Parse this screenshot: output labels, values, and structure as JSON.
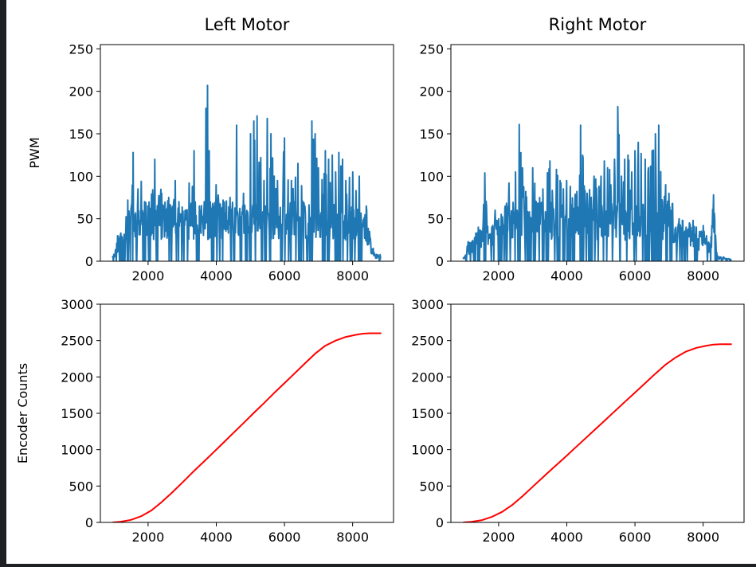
{
  "chart_data": [
    {
      "id": "pwm-left",
      "type": "line",
      "title": "Left Motor",
      "ylabel": "PWM",
      "xlabel": "",
      "xlim": [
        600,
        9200
      ],
      "ylim": [
        0,
        255
      ],
      "xticks": [
        2000,
        4000,
        6000,
        8000
      ],
      "yticks": [
        0,
        50,
        100,
        150,
        200,
        250
      ],
      "color": "#1f77b4",
      "grid": false,
      "noise_seed": 11,
      "peaks": [
        [
          1000,
          8
        ],
        [
          1100,
          30
        ],
        [
          1200,
          33
        ],
        [
          1400,
          72
        ],
        [
          1500,
          62
        ],
        [
          1560,
          128
        ],
        [
          1700,
          85
        ],
        [
          1800,
          94
        ],
        [
          1900,
          70
        ],
        [
          2100,
          79
        ],
        [
          2200,
          120
        ],
        [
          2400,
          80
        ],
        [
          2600,
          75
        ],
        [
          2800,
          95
        ],
        [
          2900,
          70
        ],
        [
          3100,
          60
        ],
        [
          3200,
          92
        ],
        [
          3300,
          88
        ],
        [
          3350,
          130
        ],
        [
          3500,
          65
        ],
        [
          3650,
          70
        ],
        [
          3700,
          180
        ],
        [
          3740,
          207
        ],
        [
          3900,
          68
        ],
        [
          4000,
          90
        ],
        [
          4200,
          72
        ],
        [
          4400,
          75
        ],
        [
          4600,
          160
        ],
        [
          4800,
          80
        ],
        [
          5000,
          150
        ],
        [
          5100,
          165
        ],
        [
          5200,
          171
        ],
        [
          5300,
          122
        ],
        [
          5400,
          95
        ],
        [
          5500,
          168
        ],
        [
          5600,
          150
        ],
        [
          5700,
          100
        ],
        [
          5800,
          95
        ],
        [
          6000,
          145
        ],
        [
          6200,
          95
        ],
        [
          6400,
          115
        ],
        [
          6600,
          65
        ],
        [
          6800,
          165
        ],
        [
          6900,
          150
        ],
        [
          7000,
          110
        ],
        [
          7100,
          96
        ],
        [
          7200,
          130
        ],
        [
          7300,
          120
        ],
        [
          7400,
          125
        ],
        [
          7500,
          105
        ],
        [
          7600,
          128
        ],
        [
          7700,
          120
        ],
        [
          7800,
          95
        ],
        [
          8000,
          105
        ],
        [
          8200,
          100
        ],
        [
          8400,
          65
        ],
        [
          8500,
          35
        ],
        [
          8600,
          15
        ],
        [
          8700,
          8
        ]
      ],
      "series": [
        {
          "x_range": [
            960,
            8840
          ],
          "y_max": 207
        }
      ]
    },
    {
      "id": "pwm-right",
      "type": "line",
      "title": "Right Motor",
      "ylabel": "",
      "xlabel": "",
      "xlim": [
        600,
        9200
      ],
      "ylim": [
        0,
        255
      ],
      "xticks": [
        2000,
        4000,
        6000,
        8000
      ],
      "yticks": [
        0,
        50,
        100,
        150,
        200,
        250
      ],
      "color": "#1f77b4",
      "grid": false,
      "noise_seed": 29,
      "peaks": [
        [
          1000,
          5
        ],
        [
          1100,
          23
        ],
        [
          1200,
          22
        ],
        [
          1400,
          40
        ],
        [
          1500,
          35
        ],
        [
          1600,
          104
        ],
        [
          1700,
          30
        ],
        [
          1800,
          40
        ],
        [
          1900,
          60
        ],
        [
          2000,
          50
        ],
        [
          2200,
          65
        ],
        [
          2300,
          92
        ],
        [
          2500,
          105
        ],
        [
          2600,
          161
        ],
        [
          2700,
          110
        ],
        [
          2800,
          82
        ],
        [
          2900,
          58
        ],
        [
          3000,
          110
        ],
        [
          3200,
          75
        ],
        [
          3300,
          85
        ],
        [
          3500,
          118
        ],
        [
          3700,
          108
        ],
        [
          3800,
          95
        ],
        [
          3900,
          85
        ],
        [
          4000,
          95
        ],
        [
          4100,
          88
        ],
        [
          4300,
          82
        ],
        [
          4400,
          160
        ],
        [
          4600,
          80
        ],
        [
          4800,
          100
        ],
        [
          5000,
          100
        ],
        [
          5100,
          118
        ],
        [
          5200,
          110
        ],
        [
          5400,
          120
        ],
        [
          5500,
          182
        ],
        [
          5600,
          100
        ],
        [
          5700,
          120
        ],
        [
          5800,
          125
        ],
        [
          5900,
          105
        ],
        [
          6000,
          130
        ],
        [
          6100,
          140
        ],
        [
          6300,
          120
        ],
        [
          6400,
          110
        ],
        [
          6500,
          130
        ],
        [
          6600,
          150
        ],
        [
          6700,
          160
        ],
        [
          6800,
          70
        ],
        [
          6900,
          90
        ],
        [
          7000,
          80
        ],
        [
          7100,
          68
        ],
        [
          7200,
          40
        ],
        [
          7300,
          50
        ],
        [
          7400,
          48
        ],
        [
          7500,
          40
        ],
        [
          7600,
          45
        ],
        [
          7700,
          48
        ],
        [
          7800,
          40
        ],
        [
          7900,
          35
        ],
        [
          8000,
          42
        ],
        [
          8100,
          30
        ],
        [
          8200,
          20
        ],
        [
          8300,
          78
        ],
        [
          8400,
          10
        ],
        [
          8500,
          5
        ],
        [
          8600,
          5
        ],
        [
          8700,
          3
        ]
      ],
      "series": [
        {
          "x_range": [
            960,
            8840
          ],
          "y_max": 182
        }
      ]
    },
    {
      "id": "encoder-left",
      "type": "line",
      "title": "",
      "ylabel": "Encoder Counts",
      "xlabel": "",
      "xlim": [
        600,
        9200
      ],
      "ylim": [
        0,
        3000
      ],
      "xticks": [
        2000,
        4000,
        6000,
        8000
      ],
      "yticks": [
        0,
        500,
        1000,
        1500,
        2000,
        2500,
        3000
      ],
      "color": "#ff0000",
      "grid": false,
      "series": [
        {
          "x": [
            960,
            1200,
            1500,
            1800,
            2100,
            2400,
            2700,
            3000,
            3300,
            3600,
            3900,
            4200,
            4500,
            4800,
            5100,
            5400,
            5700,
            6000,
            6300,
            6600,
            6900,
            7200,
            7500,
            7800,
            8100,
            8300,
            8500,
            8700,
            8840
          ],
          "y": [
            0,
            10,
            35,
            85,
            165,
            280,
            410,
            545,
            685,
            820,
            955,
            1090,
            1230,
            1365,
            1505,
            1640,
            1780,
            1915,
            2050,
            2185,
            2320,
            2430,
            2500,
            2550,
            2580,
            2595,
            2600,
            2600,
            2600
          ]
        }
      ]
    },
    {
      "id": "encoder-right",
      "type": "line",
      "title": "",
      "ylabel": "",
      "xlabel": "",
      "xlim": [
        600,
        9200
      ],
      "ylim": [
        0,
        3000
      ],
      "xticks": [
        2000,
        4000,
        6000,
        8000
      ],
      "yticks": [
        0,
        500,
        1000,
        1500,
        2000,
        2500,
        3000
      ],
      "color": "#ff0000",
      "grid": false,
      "series": [
        {
          "x": [
            960,
            1200,
            1500,
            1800,
            2100,
            2400,
            2700,
            3000,
            3300,
            3600,
            3900,
            4200,
            4500,
            4800,
            5100,
            5400,
            5700,
            6000,
            6300,
            6600,
            6900,
            7200,
            7500,
            7800,
            8100,
            8300,
            8500,
            8700,
            8840
          ],
          "y": [
            0,
            8,
            30,
            75,
            145,
            240,
            360,
            490,
            620,
            750,
            875,
            1005,
            1135,
            1265,
            1395,
            1525,
            1655,
            1785,
            1915,
            2045,
            2170,
            2270,
            2350,
            2400,
            2430,
            2445,
            2450,
            2450,
            2450
          ]
        }
      ]
    }
  ]
}
